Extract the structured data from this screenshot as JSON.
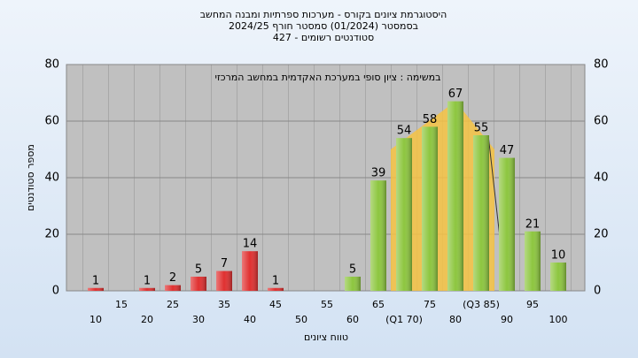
{
  "chart_data": {
    "type": "bar",
    "title": "היסטוגרמת ציונים בקורס - מערכות ספרתיות ומבנה המחשב",
    "subtitle": "בסמסטר  (01/2024)  סמסטר חורף 2024/25",
    "subtitle2": "סטודנטים רשומים - 427",
    "annotation": "במשימה : ציון סופי במערכת האקדמית במחשב המרכזי",
    "x_label": "טווח ציונים",
    "y_label": "מספר סטודנטים",
    "categories": [
      "10",
      "15",
      "20",
      "25",
      "30",
      "35",
      "40",
      "45",
      "50",
      "55",
      "60",
      "65",
      "(Q1 70)",
      "75",
      "80",
      "(Q3 85)",
      "90",
      "95",
      "100"
    ],
    "values": [
      1,
      0,
      1,
      2,
      5,
      7,
      14,
      1,
      0,
      0,
      5,
      39,
      54,
      58,
      67,
      55,
      47,
      21,
      10
    ],
    "bar_colors": [
      "#e03030",
      "#e03030",
      "#e03030",
      "#e03030",
      "#e03030",
      "#e03030",
      "#e03030",
      "#e03030",
      "#e03030",
      "#e03030",
      "#8dc63f",
      "#8dc63f",
      "#8dc63f",
      "#8dc63f",
      "#8dc63f",
      "#8dc63f",
      "#8dc63f",
      "#8dc63f",
      "#8dc63f"
    ],
    "ylim": [
      0,
      80
    ],
    "yticks": [
      0,
      20,
      40,
      60,
      80
    ],
    "grid": true
  }
}
